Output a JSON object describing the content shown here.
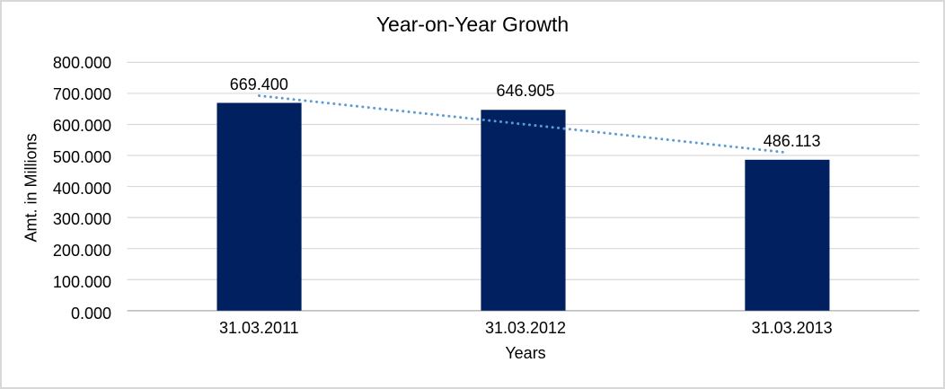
{
  "chart_data": {
    "type": "bar",
    "title": "Year-on-Year Growth",
    "xlabel": "Years",
    "ylabel": "Amt. in Millions",
    "categories": [
      "31.03.2011",
      "31.03.2012",
      "31.03.2013"
    ],
    "values": [
      669.4,
      646.905,
      486.113
    ],
    "value_labels": [
      "669.400",
      "646.905",
      "486.113"
    ],
    "ylim": [
      0,
      800
    ],
    "yticks": {
      "values": [
        0,
        100,
        200,
        300,
        400,
        500,
        600,
        700,
        800
      ],
      "labels": [
        "0.000",
        "100.000",
        "200.000",
        "300.000",
        "400.000",
        "500.000",
        "600.000",
        "700.000",
        "800.000"
      ]
    },
    "grid": true,
    "legend": "none",
    "trendline": {
      "type": "linear",
      "style": "dotted"
    },
    "colors": {
      "bar": "#002060",
      "trendline": "#5b9bd5",
      "gridline": "#d9d9d9",
      "axis_line": "#bfbfbf",
      "frame_border": "#d8d8d8",
      "text": "#000000",
      "background": "#ffffff"
    }
  }
}
